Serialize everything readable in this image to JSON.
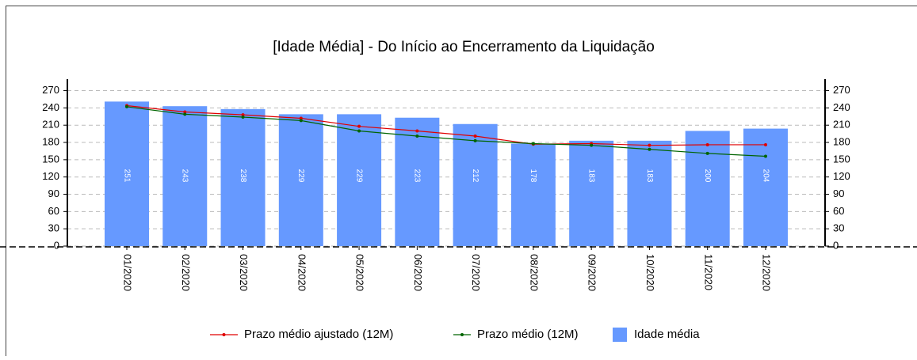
{
  "chart_data": {
    "type": "bar",
    "title": "[Idade Média]  - Do Início ao Encerramento da Liquidação",
    "categories": [
      "01/2020",
      "02/2020",
      "03/2020",
      "04/2020",
      "05/2020",
      "06/2020",
      "07/2020",
      "08/2020",
      "09/2020",
      "10/2020",
      "11/2020",
      "12/2020"
    ],
    "series": [
      {
        "name": "Prazo médio ajustado (12M)",
        "type": "line",
        "color": "#e00000",
        "values": [
          244,
          233,
          228,
          222,
          208,
          200,
          191,
          177,
          178,
          175,
          176,
          176
        ]
      },
      {
        "name": "Prazo médio (12M)",
        "type": "line",
        "color": "#006400",
        "values": [
          242,
          229,
          224,
          218,
          200,
          191,
          183,
          178,
          175,
          168,
          161,
          156
        ]
      },
      {
        "name": "Idade média",
        "type": "bar",
        "color": "#6699ff",
        "values": [
          251,
          243,
          238,
          229,
          229,
          223,
          212,
          178,
          183,
          183,
          200,
          204
        ]
      }
    ],
    "ylim": [
      0,
      290
    ],
    "yticks": [
      0,
      30,
      60,
      90,
      120,
      150,
      180,
      210,
      240,
      270
    ],
    "y2lim": [
      0,
      290
    ],
    "y2ticks": [
      0,
      30,
      60,
      90,
      120,
      150,
      180,
      210,
      240,
      270
    ],
    "grid": true
  }
}
